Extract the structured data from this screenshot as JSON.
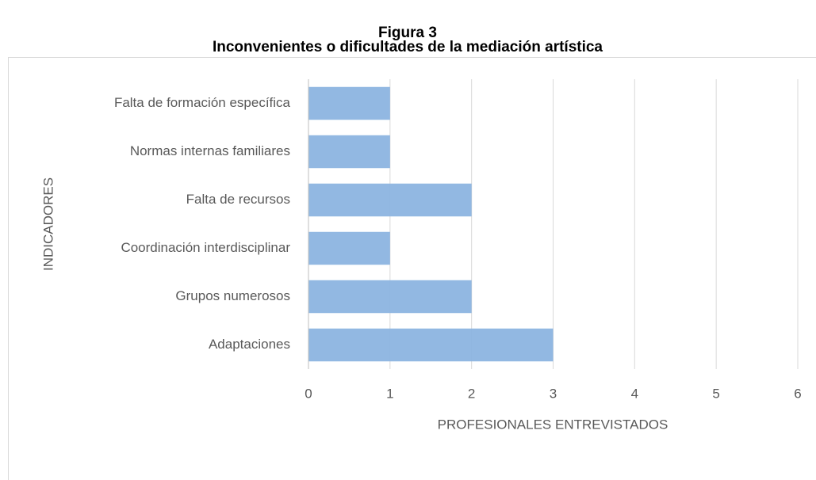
{
  "chart_data": {
    "type": "bar",
    "orientation": "horizontal",
    "title": "Figura 3",
    "subtitle": "Inconvenientes o dificultades de la mediación artística",
    "categories": [
      "Falta de formación específica",
      "Normas internas familiares",
      "Falta de recursos",
      "Coordinación interdisciplinar",
      "Grupos numerosos",
      "Adaptaciones"
    ],
    "values": [
      1,
      1,
      2,
      1,
      2,
      3
    ],
    "color": "#8cb4e0",
    "xlabel": "PROFESIONALES ENTREVISTADOS",
    "ylabel": "INDICADORES",
    "xlim": [
      0,
      6
    ],
    "xticks": [
      0,
      1,
      2,
      3,
      4,
      5,
      6
    ],
    "grid": true
  }
}
